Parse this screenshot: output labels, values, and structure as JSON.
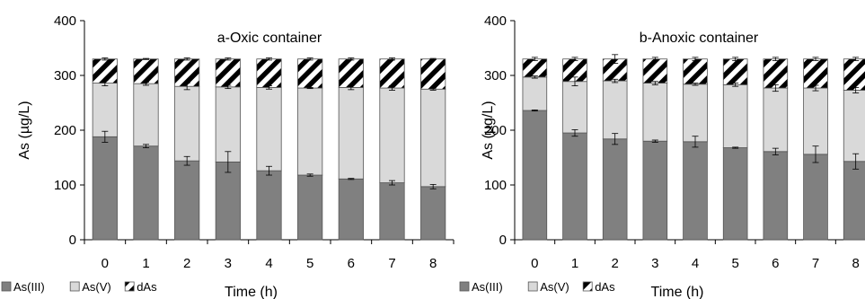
{
  "colors": {
    "as3": "#808080",
    "as5": "#d9d9d9",
    "stripe_dark": "#000000",
    "stripe_light": "#ffffff",
    "outline": "#555555",
    "axis": "#000000"
  },
  "chart_data": [
    {
      "type": "bar",
      "stacked": true,
      "title": "a-Oxic container",
      "xlabel": "Time (h)",
      "ylabel": "As (µg/L)",
      "ylim": [
        0,
        400
      ],
      "yticks": [
        0,
        100,
        200,
        300,
        400
      ],
      "categories": [
        "0",
        "1",
        "2",
        "3",
        "4",
        "5",
        "6",
        "7",
        "8"
      ],
      "grid": false,
      "legend_position": "bottom-left",
      "series": [
        {
          "name": "As(III)",
          "values": [
            188,
            171,
            144,
            142,
            126,
            118,
            111,
            104,
            97
          ],
          "err": [
            10,
            3,
            8,
            19,
            8,
            2,
            1,
            4,
            4
          ]
        },
        {
          "name": "As(V)",
          "values": [
            98,
            114,
            136,
            137,
            152,
            159,
            167,
            173,
            178
          ],
          "err": [
            5,
            3,
            6,
            3,
            3,
            1,
            4,
            4,
            2
          ]
        },
        {
          "name": "dAs",
          "values": [
            44,
            45,
            50,
            51,
            52,
            53,
            52,
            53,
            55
          ],
          "err": [
            2,
            1,
            2,
            2,
            2,
            2,
            2,
            2,
            1
          ]
        }
      ]
    },
    {
      "type": "bar",
      "stacked": true,
      "title": "b-Anoxic container",
      "xlabel": "Time (h)",
      "ylabel": "As (µg/L)",
      "ylim": [
        0,
        400
      ],
      "yticks": [
        0,
        100,
        200,
        300,
        400
      ],
      "categories": [
        "0",
        "1",
        "2",
        "3",
        "4",
        "5",
        "6",
        "7",
        "8"
      ],
      "grid": false,
      "legend_position": "bottom-left",
      "series": [
        {
          "name": "As(III)",
          "values": [
            236,
            195,
            184,
            180,
            179,
            168,
            161,
            156,
            143
          ],
          "err": [
            1,
            6,
            10,
            2,
            10,
            1,
            6,
            15,
            14
          ]
        },
        {
          "name": "As(V)",
          "values": [
            61,
            94,
            106,
            106,
            105,
            115,
            116,
            121,
            130
          ],
          "err": [
            2,
            8,
            3,
            3,
            2,
            3,
            6,
            5,
            5
          ]
        },
        {
          "name": "dAs",
          "values": [
            33,
            41,
            40,
            44,
            46,
            47,
            53,
            53,
            57
          ],
          "err": [
            3,
            3,
            8,
            3,
            3,
            3,
            3,
            3,
            3
          ]
        }
      ]
    }
  ]
}
